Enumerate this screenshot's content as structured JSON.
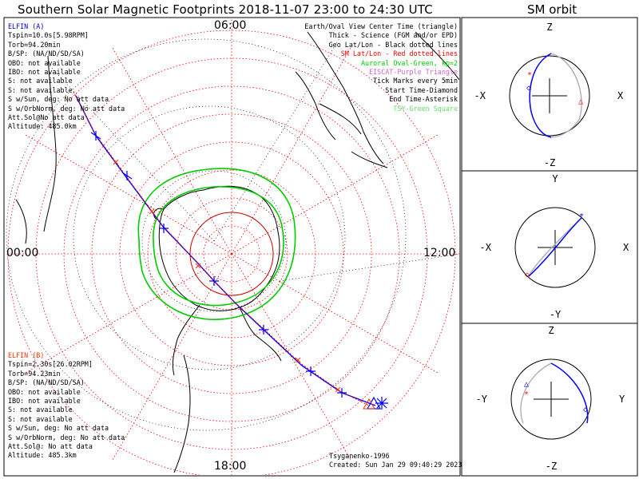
{
  "title": "Southern Solar Magnetic Footprints 2018-11-07 23:00 to 24:30 UTC",
  "sm_orbit_title": "SM orbit",
  "time_labels": {
    "top": "06:00",
    "left": "00:00",
    "right": "12:00",
    "bottom": "18:00"
  },
  "elfin_a": {
    "name": "ELFIN (A)",
    "lines": [
      "Tspin=10.0s[5.98RPM]",
      "Torb=94.20min",
      "B/SP: (NA/ND/SD/SA)",
      "OBO: not available",
      "IBO: not available",
      "S: not available",
      "S: not available",
      "S w/Sun, deg: No att data",
      "S w/OrbNorm, deg: No att data",
      "Att.Sol@No att data",
      "Altitude: 485.0km"
    ]
  },
  "elfin_b": {
    "name": "ELFIN (B)",
    "lines": [
      "Tspin=2.30s[26.02RPM]",
      "Torb=94.23min",
      "B/SP: (NA/ND/SD/SA)",
      "OBO: not available",
      "IBO: not available",
      "S: not available",
      "S: not available",
      "S w/Sun, deg: No att data",
      "S w/OrbNorm, deg: No att data",
      "Att.Sol@: No att data",
      "Altitude: 485.3km"
    ]
  },
  "legend": [
    {
      "text": "Earth/Oval View Center Time (triangle)",
      "color": "#000000"
    },
    {
      "text": "Thick - Science (FGM and/or EPD)",
      "color": "#000000"
    },
    {
      "text": "Geo Lat/Lon - Black dotted lines",
      "color": "#000000"
    },
    {
      "text": "SM Lat/Lon - Red dotted lines",
      "color": "#ff0000"
    },
    {
      "text": "Auroral Oval-Green, kp=2",
      "color": "#00cc00"
    },
    {
      "text": "EISCAT-Purple Triangle",
      "color": "#cc66cc"
    },
    {
      "text": "Tick Marks every 5min",
      "color": "#000000"
    },
    {
      "text": "Start Time-Diamond",
      "color": "#000000"
    },
    {
      "text": "End Time-Asterisk",
      "color": "#000000"
    },
    {
      "text": "TSY-Green Square",
      "color": "#66dd66"
    }
  ],
  "credits": {
    "author": "Tsyganenko-1996",
    "created": "Created: Sun Jan 29 09:40:29 2023"
  },
  "sm_panels": [
    {
      "top": "Z",
      "bottom": "-Z",
      "left": "-X",
      "right": "X"
    },
    {
      "top": "Y",
      "bottom": "-Y",
      "left": "-X",
      "right": "X"
    },
    {
      "top": "Z",
      "bottom": "-Z",
      "left": "-Y",
      "right": "Y"
    }
  ],
  "colors": {
    "elfin_a": "#0000ff",
    "elfin_b": "#ff0000",
    "oval": "#00cc00",
    "sm_grid": "#ff0000",
    "geo_grid": "#000000"
  }
}
